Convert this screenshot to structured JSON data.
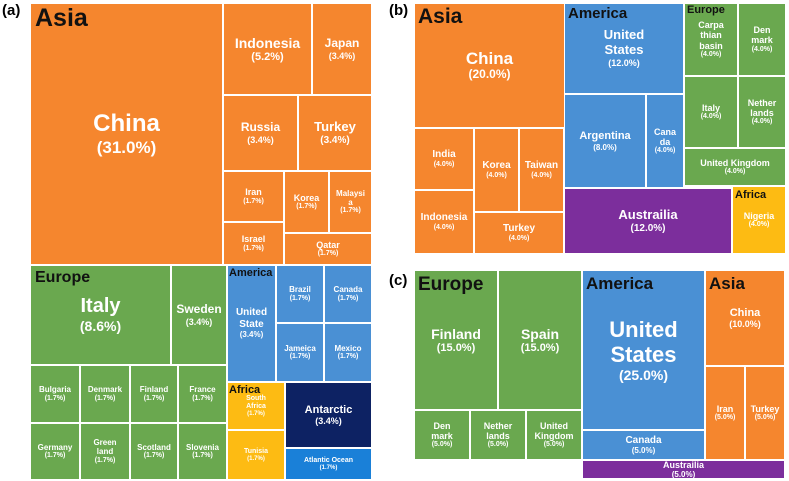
{
  "chart_data": [
    {
      "panel": "(a)",
      "type": "treemap",
      "groups": [
        {
          "name": "Asia",
          "items": [
            {
              "name": "China",
              "value": "(31.0%)"
            },
            {
              "name": "Indonesia",
              "value": "(5.2%)"
            },
            {
              "name": "Japan",
              "value": "(3.4%)"
            },
            {
              "name": "Russia",
              "value": "(3.4%)"
            },
            {
              "name": "Turkey",
              "value": "(3.4%)"
            },
            {
              "name": "Iran",
              "value": "(1.7%)"
            },
            {
              "name": "Korea",
              "value": "(1.7%)"
            },
            {
              "name": "Malaysi\na",
              "value": "(1.7%)"
            },
            {
              "name": "Israel",
              "value": "(1.7%)"
            },
            {
              "name": "Qatar",
              "value": "(1.7%)"
            }
          ]
        },
        {
          "name": "Europe",
          "items": [
            {
              "name": "Italy",
              "value": "(8.6%)"
            },
            {
              "name": "Sweden",
              "value": "(3.4%)"
            },
            {
              "name": "Bulgaria",
              "value": "(1.7%)"
            },
            {
              "name": "Denmark",
              "value": "(1.7%)"
            },
            {
              "name": "Finland",
              "value": "(1.7%)"
            },
            {
              "name": "France",
              "value": "(1.7%)"
            },
            {
              "name": "Germany",
              "value": "(1.7%)"
            },
            {
              "name": "Green\nland",
              "value": "(1.7%)"
            },
            {
              "name": "Scotland",
              "value": "(1.7%)"
            },
            {
              "name": "Slovenia",
              "value": "(1.7%)"
            }
          ]
        },
        {
          "name": "America",
          "items": [
            {
              "name": "United\nState",
              "value": "(3.4%)"
            },
            {
              "name": "Brazil",
              "value": "(1.7%)"
            },
            {
              "name": "Canada",
              "value": "(1.7%)"
            },
            {
              "name": "Jameica",
              "value": "(1.7%)"
            },
            {
              "name": "Mexico",
              "value": "(1.7%)"
            }
          ]
        },
        {
          "name": "Africa",
          "items": [
            {
              "name": "South\nAfrica",
              "value": "(1.7%)"
            },
            {
              "name": "Tunisia",
              "value": "(1.7%)"
            }
          ]
        },
        {
          "name": "",
          "items": [
            {
              "name": "Antarctic",
              "value": "(3.4%)"
            },
            {
              "name": "Atlantic Ocean",
              "value": "(1.7%)"
            }
          ]
        }
      ]
    },
    {
      "panel": "(b)",
      "type": "treemap",
      "groups": [
        {
          "name": "Asia",
          "items": [
            {
              "name": "China",
              "value": "(20.0%)"
            },
            {
              "name": "India",
              "value": "(4.0%)"
            },
            {
              "name": "Korea",
              "value": "(4.0%)"
            },
            {
              "name": "Taiwan",
              "value": "(4.0%)"
            },
            {
              "name": "Indonesia",
              "value": "(4.0%)"
            },
            {
              "name": "Turkey",
              "value": "(4.0%)"
            }
          ]
        },
        {
          "name": "America",
          "items": [
            {
              "name": "United\nStates",
              "value": "(12.0%)"
            },
            {
              "name": "Argentina",
              "value": "(8.0%)"
            },
            {
              "name": "Cana\nda",
              "value": "(4.0%)"
            }
          ]
        },
        {
          "name": "Europe",
          "items": [
            {
              "name": "Carpa\nthian\nbasin",
              "value": "(4.0%)"
            },
            {
              "name": "Den\nmark",
              "value": "(4.0%)"
            },
            {
              "name": "Italy",
              "value": "(4.0%)"
            },
            {
              "name": "Nether\nlands",
              "value": "(4.0%)"
            },
            {
              "name": "United Kingdom",
              "value": "(4.0%)"
            }
          ]
        },
        {
          "name": "",
          "items": [
            {
              "name": "Austrailia",
              "value": "(12.0%)"
            }
          ]
        },
        {
          "name": "Africa",
          "items": [
            {
              "name": "Nigeria",
              "value": "(4.0%)"
            }
          ]
        }
      ]
    },
    {
      "panel": "(c)",
      "type": "treemap",
      "groups": [
        {
          "name": "Europe",
          "items": [
            {
              "name": "Finland",
              "value": "(15.0%)"
            },
            {
              "name": "Spain",
              "value": "(15.0%)"
            },
            {
              "name": "Den\nmark",
              "value": "(5.0%)"
            },
            {
              "name": "Nether\nlands",
              "value": "(5.0%)"
            },
            {
              "name": "United\nKingdom",
              "value": "(5.0%)"
            }
          ]
        },
        {
          "name": "America",
          "items": [
            {
              "name": "United\nStates",
              "value": "(25.0%)"
            },
            {
              "name": "Canada",
              "value": "(5.0%)"
            },
            {
              "name": "Austrailia",
              "value": "(5.0%)"
            }
          ]
        },
        {
          "name": "Asia",
          "items": [
            {
              "name": "China",
              "value": "(10.0%)"
            },
            {
              "name": "Iran",
              "value": "(5.0%)"
            },
            {
              "name": "Turkey",
              "value": "(5.0%)"
            }
          ]
        }
      ]
    }
  ],
  "colors": {
    "asia": "#f5862e",
    "europe": "#6aa84f",
    "america": "#4a90d4",
    "africa": "#fdbb13",
    "antarctic": "#0d2263",
    "ocean": "#1a80d8",
    "oceania": "#7c2e9c"
  }
}
